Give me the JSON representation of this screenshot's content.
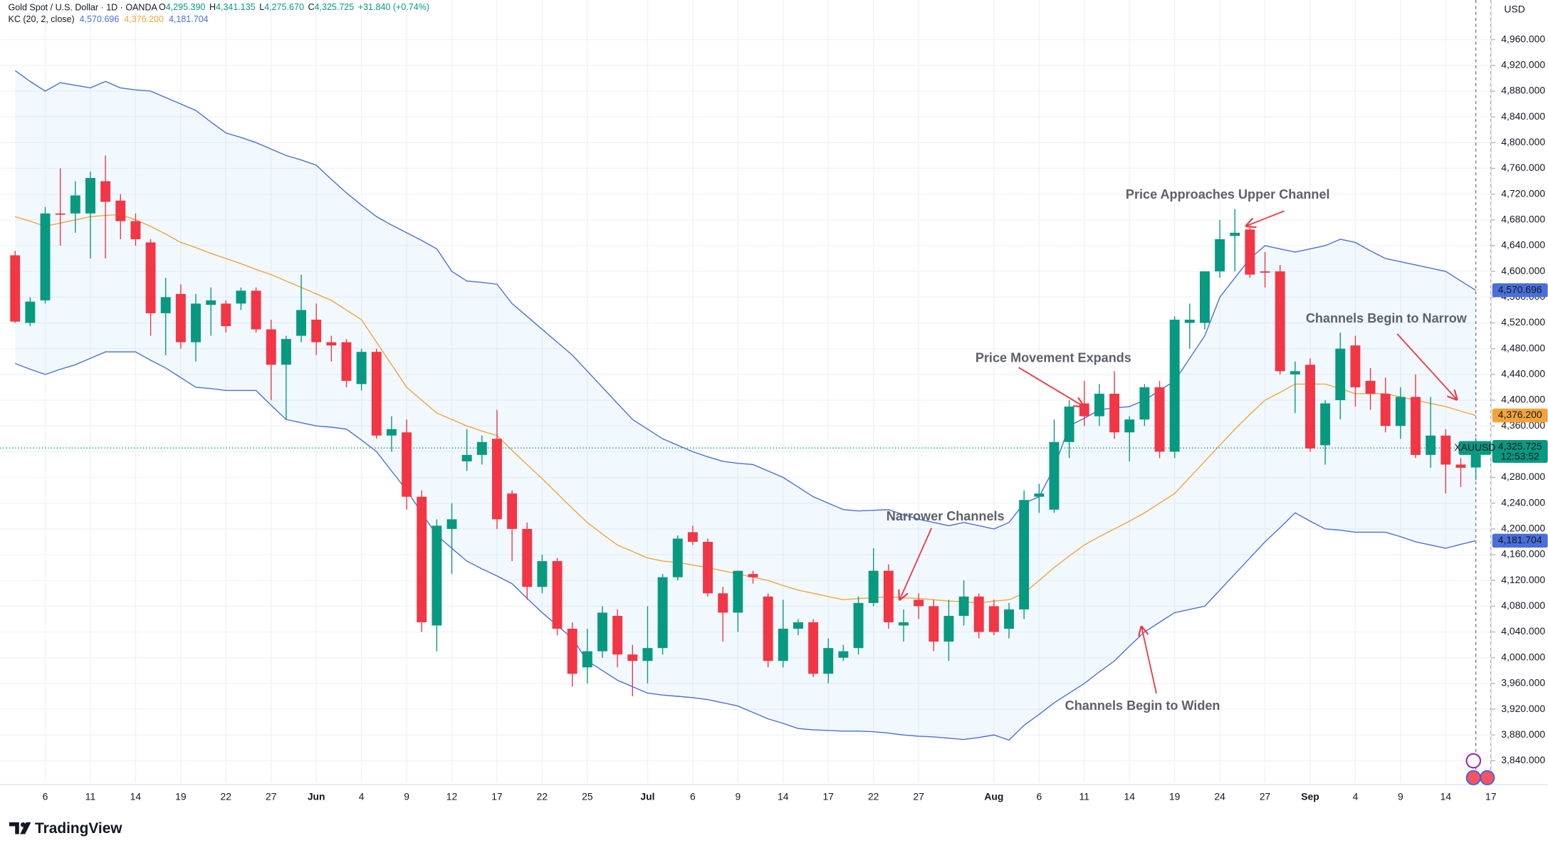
{
  "chart_data": {
    "type": "candlestick",
    "title": "Gold Spot / U.S. Dollar · 1D · OANDA",
    "ohlc": [
      {
        "key": "O",
        "value": "4,295.390"
      },
      {
        "key": "H",
        "value": "4,341.135"
      },
      {
        "key": "L",
        "value": "4,275.670"
      },
      {
        "key": "C",
        "value": "4,325.725"
      }
    ],
    "change": "+31.840 (+0.74%)",
    "indicator": "KC (20, 2, close)",
    "currency": "USD",
    "brand": "TradingView",
    "up_color": "#089981",
    "down_color": "#f23645",
    "fill_color": "#2196f3",
    "grid": true,
    "categories": [
      null,
      null,
      "6",
      null,
      null,
      "11",
      null,
      null,
      "14",
      null,
      null,
      "19",
      null,
      null,
      "22",
      null,
      null,
      "27",
      null,
      null,
      "Jun",
      null,
      null,
      "4",
      null,
      null,
      "9",
      null,
      null,
      "12",
      null,
      null,
      "17",
      null,
      null,
      "22",
      null,
      null,
      "25",
      null,
      null,
      null,
      "Jul",
      null,
      null,
      "6",
      null,
      null,
      "9",
      null,
      null,
      "14",
      null,
      null,
      "17",
      null,
      null,
      "22",
      null,
      null,
      "27",
      null,
      null,
      null,
      null,
      "Aug",
      null,
      null,
      "6",
      null,
      null,
      "11",
      null,
      null,
      "14",
      null,
      null,
      "19",
      null,
      null,
      "24",
      null,
      null,
      "27",
      null,
      null,
      "Sep",
      null,
      null,
      "4",
      null,
      null,
      "9",
      null,
      null,
      "14",
      null,
      null,
      "17"
    ],
    "open": [
      4625,
      4520,
      4555,
      4690,
      4690,
      4690,
      4740,
      4710,
      4678,
      4645,
      4535,
      4565,
      4490,
      4548,
      4550,
      4550,
      4570,
      4510,
      4455,
      4500,
      4525,
      4490,
      4490,
      4425,
      4475,
      4345,
      4350,
      4250,
      4050,
      4200,
      4305,
      4315,
      4340,
      4255,
      4200,
      4110,
      4150,
      4045,
      3985,
      4010,
      4065,
      4005,
      3995,
      4015,
      4125,
      4195,
      4180,
      4100,
      4070,
      4130,
      4095,
      3995,
      4045,
      4055,
      3975,
      4000,
      4015,
      4085,
      4135,
      4050,
      4090,
      4080,
      4025,
      4065,
      4095,
      4080,
      4045,
      4075,
      4250,
      4230,
      4335,
      4395,
      4375,
      4410,
      4350,
      4370,
      4420,
      4320,
      4520,
      4520,
      4600,
      4655,
      4665,
      4600,
      4600,
      4440,
      4455,
      4330,
      4400,
      4485,
      4430,
      4410,
      4360,
      4405,
      4315,
      4345,
      4300,
      4295.39,
      null
    ],
    "high": [
      4632,
      4560,
      4700,
      4760,
      4740,
      4755,
      4780,
      4720,
      4690,
      4650,
      4590,
      4580,
      4565,
      4575,
      4555,
      4575,
      4575,
      4525,
      4500,
      4595,
      4550,
      4500,
      4495,
      4480,
      4480,
      4375,
      4370,
      4260,
      4215,
      4240,
      4355,
      4345,
      4385,
      4260,
      4210,
      4160,
      4155,
      4055,
      4045,
      4080,
      4075,
      4020,
      4080,
      4130,
      4190,
      4205,
      4185,
      4110,
      4135,
      4135,
      4100,
      4090,
      4060,
      4060,
      4030,
      4020,
      4095,
      4170,
      4145,
      4075,
      4100,
      4090,
      4090,
      4120,
      4100,
      4090,
      4085,
      4260,
      4270,
      4370,
      4400,
      4430,
      4425,
      4445,
      4375,
      4425,
      4430,
      4530,
      4550,
      4600,
      4680,
      4697,
      4670,
      4630,
      4610,
      4460,
      4465,
      4400,
      4505,
      4500,
      4450,
      4435,
      4420,
      4440,
      4405,
      4355,
      4310,
      4341.135,
      null
    ],
    "low": [
      4520,
      4515,
      4550,
      4640,
      4660,
      4620,
      4620,
      4650,
      4640,
      4500,
      4470,
      4480,
      4460,
      4500,
      4505,
      4540,
      4505,
      4400,
      4370,
      4490,
      4470,
      4460,
      4420,
      4415,
      4340,
      4320,
      4230,
      4040,
      4010,
      4130,
      4290,
      4300,
      4200,
      4150,
      4090,
      4100,
      4035,
      3955,
      3960,
      4000,
      3985,
      3940,
      3960,
      4005,
      4120,
      4175,
      4095,
      4025,
      4040,
      4115,
      3985,
      3985,
      4035,
      3970,
      3960,
      3995,
      4005,
      4080,
      4045,
      4025,
      4060,
      4010,
      3995,
      4050,
      4030,
      4035,
      4030,
      4060,
      4225,
      4225,
      4310,
      4360,
      4360,
      4340,
      4305,
      4360,
      4310,
      4310,
      4480,
      4510,
      4590,
      4600,
      4590,
      4575,
      4440,
      4380,
      4320,
      4300,
      4370,
      4390,
      4385,
      4350,
      4340,
      4310,
      4295,
      4255,
      4265,
      4275.67,
      null
    ],
    "close": [
      4522,
      4553,
      4690,
      4688,
      4718,
      4745,
      4708,
      4678,
      4650,
      4535,
      4560,
      4490,
      4550,
      4555,
      4515,
      4570,
      4510,
      4455,
      4495,
      4540,
      4490,
      4485,
      4430,
      4475,
      4345,
      4355,
      4250,
      4055,
      4205,
      4215,
      4315,
      4335,
      4215,
      4200,
      4110,
      4150,
      4045,
      3975,
      4010,
      4070,
      4005,
      3995,
      4015,
      4125,
      4185,
      4180,
      4100,
      4070,
      4135,
      4125,
      3995,
      4045,
      4055,
      3975,
      4015,
      4010,
      4085,
      4135,
      4055,
      4055,
      4080,
      4025,
      4065,
      4095,
      4040,
      4040,
      4075,
      4245,
      4255,
      4335,
      4390,
      4375,
      4410,
      4350,
      4370,
      4420,
      4320,
      4525,
      4525,
      4600,
      4650,
      4660,
      4595,
      4598,
      4445,
      4445,
      4325,
      4395,
      4480,
      4420,
      4410,
      4360,
      4405,
      4315,
      4345,
      4300,
      4295,
      4325.725,
      null
    ],
    "series": [
      {
        "color": "#4a6fd8",
        "value_label": "4,570.696",
        "values": [
          4912,
          4895,
          4880,
          4893,
          4889,
          4885,
          4895,
          4885,
          4882,
          4880,
          4870,
          4860,
          4850,
          4832,
          4815,
          4808,
          4800,
          4790,
          4780,
          4773,
          4765,
          4743,
          4722,
          4703,
          4685,
          4672,
          4660,
          4648,
          4635,
          4600,
          4585,
          4583,
          4580,
          4550,
          4530,
          4510,
          4490,
          4470,
          4445,
          4420,
          4395,
          4370,
          4355,
          4340,
          4330,
          4320,
          4312,
          4305,
          4302,
          4300,
          4290,
          4280,
          4265,
          4250,
          4240,
          4230,
          4228,
          4229,
          4230,
          4222,
          4215,
          4210,
          4205,
          4210,
          4205,
          4200,
          4210,
          4240,
          4250,
          4295,
          4360,
          4372,
          4385,
          4388,
          4390,
          4400,
          4415,
          4430,
          4465,
          4500,
          4560,
          4590,
          4620,
          4640,
          4635,
          4630,
          4635,
          4640,
          4650,
          4645,
          4632,
          4620,
          4615,
          4610,
          4605,
          4600,
          4585,
          4570.696,
          null
        ]
      },
      {
        "color": "#f2a43a",
        "value_label": "4,376.200",
        "values": [
          4685,
          4678,
          4670,
          4675,
          4680,
          4685,
          4687,
          4688,
          4680,
          4670,
          4658,
          4645,
          4637,
          4628,
          4620,
          4612,
          4603,
          4595,
          4585,
          4575,
          4565,
          4555,
          4540,
          4525,
          4490,
          4455,
          4420,
          4400,
          4380,
          4370,
          4360,
          4352,
          4345,
          4322,
          4300,
          4278,
          4255,
          4232,
          4210,
          4192,
          4175,
          4165,
          4155,
          4150,
          4148,
          4144,
          4140,
          4135,
          4130,
          4125,
          4120,
          4112,
          4105,
          4100,
          4095,
          4090,
          4092,
          4093,
          4095,
          4093,
          4092,
          4090,
          4088,
          4087,
          4085,
          4088,
          4090,
          4100,
          4120,
          4140,
          4158,
          4175,
          4188,
          4200,
          4212,
          4225,
          4240,
          4255,
          4280,
          4305,
          4330,
          4355,
          4378,
          4400,
          4412,
          4425,
          4425,
          4425,
          4418,
          4410,
          4410,
          4410,
          4405,
          4400,
          4395,
          4390,
          4383,
          4376.2,
          null
        ]
      },
      {
        "color": "#4a6fd8",
        "value_label": "4,181.704",
        "values": [
          4457,
          4448,
          4440,
          4448,
          4455,
          4465,
          4475,
          4475,
          4475,
          4462,
          4450,
          4435,
          4420,
          4418,
          4415,
          4415,
          4415,
          4392,
          4370,
          4365,
          4360,
          4358,
          4355,
          4338,
          4320,
          4290,
          4260,
          4225,
          4190,
          4170,
          4150,
          4138,
          4127,
          4115,
          4092,
          4070,
          4050,
          4030,
          3995,
          3980,
          3965,
          3955,
          3945,
          3942,
          3940,
          3938,
          3935,
          3930,
          3925,
          3915,
          3905,
          3898,
          3890,
          3888,
          3887,
          3886,
          3886,
          3885,
          3883,
          3880,
          3878,
          3877,
          3875,
          3873,
          3876,
          3880,
          3872,
          3895,
          3912,
          3930,
          3945,
          3960,
          3978,
          3995,
          4018,
          4040,
          4055,
          4070,
          4075,
          4080,
          4105,
          4130,
          4155,
          4180,
          4202,
          4225,
          4212,
          4200,
          4198,
          4195,
          4195,
          4195,
          4188,
          4180,
          4175,
          4170,
          4176,
          4181.704,
          null
        ]
      }
    ],
    "price_tag": {
      "symbol": "XAUUSD",
      "price_label": "4,325.725",
      "countdown": "12:53:52"
    },
    "annotations": [
      {
        "text": "Price Approaches Upper Channel"
      },
      {
        "text": "Channels Begin to Narrow"
      },
      {
        "text": "Price Movement Expands"
      },
      {
        "text": "Narrower Channels"
      },
      {
        "text": "Channels Begin to Widen"
      }
    ],
    "ylim": [
      3806,
      5021.5
    ],
    "yticks": [
      {
        "value": 3840,
        "label": "3,840.000"
      },
      {
        "value": 3880,
        "label": "3,880.000"
      },
      {
        "value": 3920,
        "label": "3,920.000"
      },
      {
        "value": 3960,
        "label": "3,960.000"
      },
      {
        "value": 4000,
        "label": "4,000.000"
      },
      {
        "value": 4040,
        "label": "4,040.000"
      },
      {
        "value": 4080,
        "label": "4,080.000"
      },
      {
        "value": 4120,
        "label": "4,120.000"
      },
      {
        "value": 4160,
        "label": "4,160.000"
      },
      {
        "value": 4200,
        "label": "4,200.000"
      },
      {
        "value": 4240,
        "label": "4,240.000"
      },
      {
        "value": 4280,
        "label": "4,280.000"
      },
      {
        "value": 4320,
        "label": "4,320.000"
      },
      {
        "value": 4360,
        "label": "4,360.000"
      },
      {
        "value": 4400,
        "label": "4,400.000"
      },
      {
        "value": 4440,
        "label": "4,440.000"
      },
      {
        "value": 4480,
        "label": "4,480.000"
      },
      {
        "value": 4520,
        "label": "4,520.000"
      },
      {
        "value": 4560,
        "label": "4,560.000"
      },
      {
        "value": 4600,
        "label": "4,600.000"
      },
      {
        "value": 4640,
        "label": "4,640.000"
      },
      {
        "value": 4680,
        "label": "4,680.000"
      },
      {
        "value": 4720,
        "label": "4,720.000"
      },
      {
        "value": 4760,
        "label": "4,760.000"
      },
      {
        "value": 4800,
        "label": "4,800.000"
      },
      {
        "value": 4840,
        "label": "4,840.000"
      },
      {
        "value": 4880,
        "label": "4,880.000"
      },
      {
        "value": 4920,
        "label": "4,920.000"
      },
      {
        "value": 4960,
        "label": "4,960.000"
      }
    ]
  }
}
